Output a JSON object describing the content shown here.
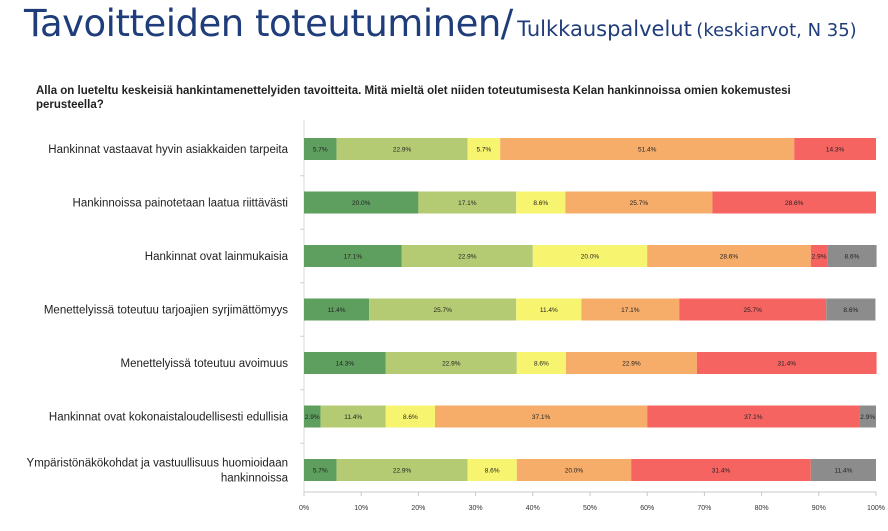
{
  "header": {
    "title": "Tavoitteiden toteutuminen/",
    "subtitle": "Tulkkauspalvelut",
    "subtitle_note": "(keskiarvot, N 35)"
  },
  "question": "Alla on lueteltu keskeisiä hankintamenettelyiden tavoitteita. Mitä mieltä olet niiden toteutumisesta Kelan hankinnoissa omien kokemustesi perusteella?",
  "chart_data": {
    "type": "bar",
    "orientation": "horizontal",
    "stacked": true,
    "percent_stacked": true,
    "xlim": [
      0,
      100
    ],
    "x_ticks": [
      "0%",
      "10%",
      "20%",
      "30%",
      "40%",
      "50%",
      "60%",
      "70%",
      "80%",
      "90%",
      "100%"
    ],
    "grid": false,
    "legend": "none",
    "categories": [
      [
        "Hankinnat vastaavat hyvin asiakkaiden tarpeita"
      ],
      [
        "Hankinnoissa painotetaan laatua riittävästi"
      ],
      [
        "Hankinnat ovat lainmukaisia"
      ],
      [
        "Menettelyissä toteutuu tarjoajien syrjimättömyys"
      ],
      [
        "Menettelyissä toteutuu avoimuus"
      ],
      [
        "Hankinnat ovat kokonaistaloudellisesti edullisia"
      ],
      [
        "Ympäristönäkökohdat ja vastuullisuus huomioidaan",
        "hankinnoissa"
      ]
    ],
    "series": [
      {
        "color": "#5e9e5e",
        "values": [
          5.7,
          20.0,
          17.1,
          11.4,
          14.3,
          2.9,
          5.7
        ]
      },
      {
        "color": "#b5cb73",
        "values": [
          22.9,
          17.1,
          22.9,
          25.7,
          22.9,
          11.4,
          22.9
        ]
      },
      {
        "color": "#f7f570",
        "values": [
          5.7,
          8.6,
          20.0,
          11.4,
          8.6,
          8.6,
          8.6
        ]
      },
      {
        "color": "#f6ad6a",
        "values": [
          51.4,
          25.7,
          28.6,
          17.1,
          22.9,
          37.1,
          20.0
        ]
      },
      {
        "color": "#f56461",
        "values": [
          14.3,
          28.6,
          2.9,
          25.7,
          31.4,
          37.1,
          31.4
        ]
      },
      {
        "color": "#8c8c8c",
        "values": [
          0,
          0,
          8.6,
          8.6,
          0,
          2.9,
          11.4
        ]
      }
    ]
  }
}
